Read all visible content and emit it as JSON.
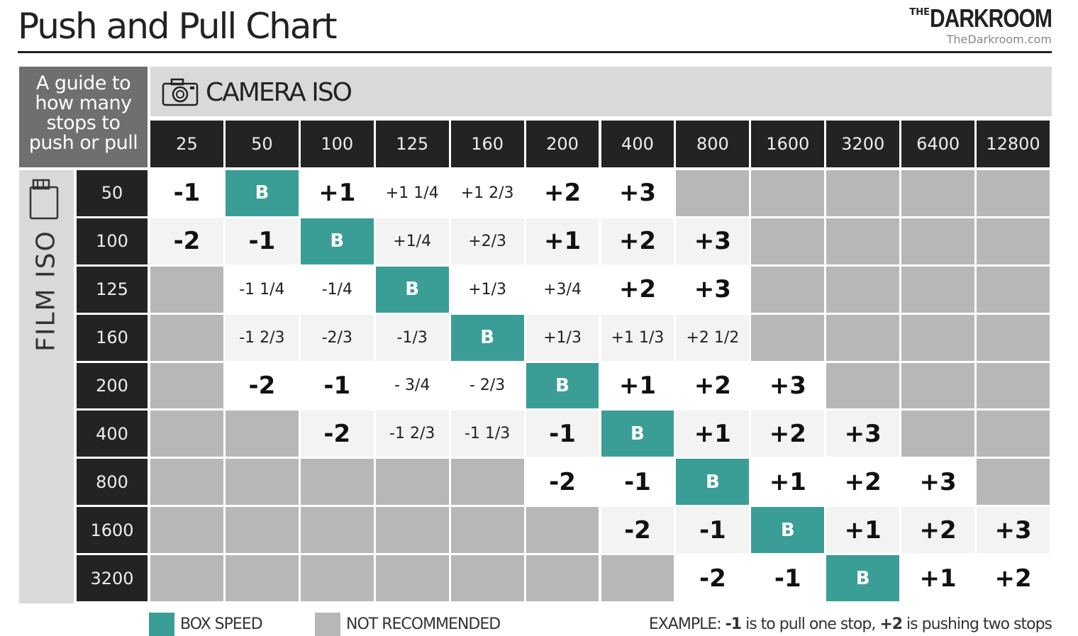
{
  "header": {
    "title": "Push and Pull Chart",
    "logo": {
      "the": "THE",
      "name": "DARKROOM",
      "url": "TheDarkroom.com"
    }
  },
  "table": {
    "corner": [
      "A guide to",
      "how many",
      "stops to",
      "push or pull"
    ],
    "column_group": "CAMERA ISO",
    "row_group": "FILM ISO",
    "columns": [
      "25",
      "50",
      "100",
      "125",
      "160",
      "200",
      "400",
      "800",
      "1600",
      "3200",
      "6400",
      "12800"
    ],
    "rows": [
      {
        "iso": "50",
        "cells": [
          "-1",
          "B",
          "+1",
          "+1 1/4",
          "+1 2/3",
          "+2",
          "+3",
          null,
          null,
          null,
          null,
          null
        ]
      },
      {
        "iso": "100",
        "cells": [
          "-2",
          "-1",
          "B",
          "+1/4",
          "+2/3",
          "+1",
          "+2",
          "+3",
          null,
          null,
          null,
          null
        ]
      },
      {
        "iso": "125",
        "cells": [
          null,
          "-1 1/4",
          "-1/4",
          "B",
          "+1/3",
          "+3/4",
          "+2",
          "+3",
          null,
          null,
          null,
          null
        ]
      },
      {
        "iso": "160",
        "cells": [
          null,
          "-1 2/3",
          "-2/3",
          "-1/3",
          "B",
          "+1/3",
          "+1 1/3",
          "+2 1/2",
          null,
          null,
          null,
          null
        ]
      },
      {
        "iso": "200",
        "cells": [
          null,
          "-2",
          "-1",
          "- 3/4",
          "- 2/3",
          "B",
          "+1",
          "+2",
          "+3",
          null,
          null,
          null
        ]
      },
      {
        "iso": "400",
        "cells": [
          null,
          null,
          "-2",
          "-1 2/3",
          "-1 1/3",
          "-1",
          "B",
          "+1",
          "+2",
          "+3",
          null,
          null
        ]
      },
      {
        "iso": "800",
        "cells": [
          null,
          null,
          null,
          null,
          null,
          "-2",
          "-1",
          "B",
          "+1",
          "+2",
          "+3",
          null
        ]
      },
      {
        "iso": "1600",
        "cells": [
          null,
          null,
          null,
          null,
          null,
          null,
          "-2",
          "-1",
          "B",
          "+1",
          "+2",
          "+3"
        ]
      },
      {
        "iso": "3200",
        "cells": [
          null,
          null,
          null,
          null,
          null,
          null,
          null,
          "-2",
          "-1",
          "B",
          "+1",
          "+2"
        ]
      }
    ]
  },
  "legend": {
    "items": [
      {
        "label": "BOX SPEED",
        "color": "#3a9e96"
      },
      {
        "label": "NOT RECOMMENDED",
        "color": "#b7b7b7"
      }
    ],
    "example": [
      "EXAMPLE: ",
      "-1",
      " is to pull one stop, ",
      "+2",
      " is pushing two stops"
    ]
  }
}
